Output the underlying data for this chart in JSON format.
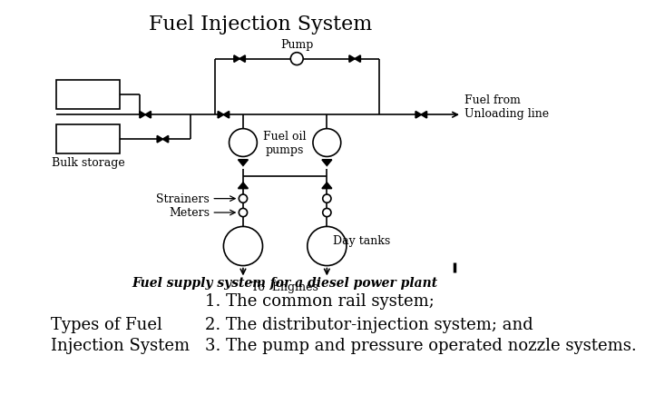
{
  "title": "Fuel Injection System",
  "bg_color": "#ffffff",
  "title_fontsize": 16,
  "diagram_caption": "Fuel supply system for a diesel power plant",
  "label_pump": "Pump",
  "label_bulk_storage": "Bulk storage",
  "label_fuel_oil_pumps": "Fuel oil\npumps",
  "label_fuel_from": "Fuel from\nUnloading line",
  "label_strainers": "Strainers",
  "label_meters": "Meters",
  "label_day_tanks": "Day tanks",
  "label_to_engines": "To  Engines",
  "text1": "1. The common rail system;",
  "text2": "2. The distributor-injection system; and",
  "text3": "3. The pump and pressure operated nozzle systems.",
  "label_left": "Types of Fuel\nInjection System",
  "text_fontsize": 13,
  "small_fontsize": 8,
  "caption_fontsize": 9
}
